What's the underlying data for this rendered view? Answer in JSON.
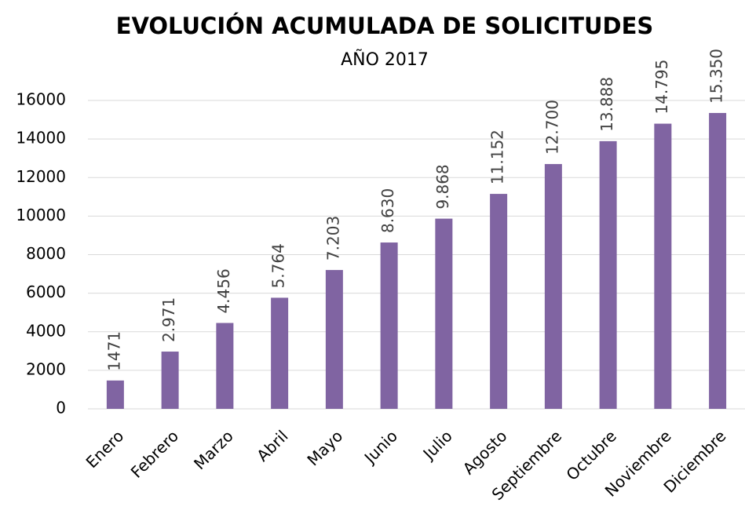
{
  "chart_data": {
    "type": "bar",
    "title": "EVOLUCIÓN ACUMULADA DE SOLICITUDES",
    "subtitle": "AÑO 2017",
    "categories": [
      "Enero",
      "Febrero",
      "Marzo",
      "Abril",
      "Mayo",
      "Junio",
      "Julio",
      "Agosto",
      "Septiembre",
      "Octubre",
      "Noviembre",
      "Diciembre"
    ],
    "values": [
      1471,
      2971,
      4456,
      5764,
      7203,
      8630,
      9868,
      11152,
      12700,
      13888,
      14795,
      15350
    ],
    "value_labels": [
      "1471",
      "2.971",
      "4.456",
      "5.764",
      "7.203",
      "8.630",
      "9.868",
      "11.152",
      "12.700",
      "13.888",
      "14.795",
      "15.350"
    ],
    "color": "#8064a2",
    "ylim": [
      0,
      16000
    ],
    "yticks": [
      0,
      2000,
      4000,
      6000,
      8000,
      10000,
      12000,
      14000,
      16000
    ],
    "grid": true
  }
}
